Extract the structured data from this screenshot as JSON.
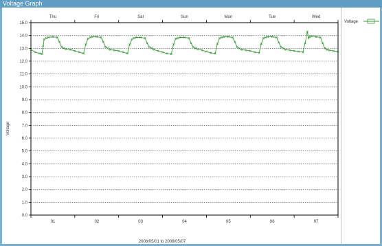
{
  "window": {
    "title": "Voltage Graph"
  },
  "colors": {
    "series": "#3a9a3a",
    "grid": "#444444",
    "axis": "#000000",
    "background": "#ffffff",
    "frame": "#7ab0cf"
  },
  "chart_data": {
    "type": "line",
    "title": "",
    "xlabel": "2008/05/01 to 2008/05/07",
    "ylabel": "Voltage",
    "ylim": [
      0,
      15
    ],
    "yticks": [
      "0.0",
      "1.0",
      "2.0",
      "3.0",
      "4.0",
      "5.0",
      "6.0",
      "7.0",
      "8.0",
      "9.0",
      "10.0",
      "11.0",
      "12.0",
      "13.0",
      "14.0",
      "15.0"
    ],
    "xlim": [
      0,
      7
    ],
    "xticks": [
      {
        "x": 0.5,
        "label": "01"
      },
      {
        "x": 1.5,
        "label": "02"
      },
      {
        "x": 2.5,
        "label": "03"
      },
      {
        "x": 3.5,
        "label": "04"
      },
      {
        "x": 4.5,
        "label": "05"
      },
      {
        "x": 5.5,
        "label": "06"
      },
      {
        "x": 6.5,
        "label": "07"
      }
    ],
    "top_labels": [
      {
        "x": 0.5,
        "label": "Thu"
      },
      {
        "x": 1.5,
        "label": "Fri"
      },
      {
        "x": 2.5,
        "label": "Sat"
      },
      {
        "x": 3.5,
        "label": "Sun"
      },
      {
        "x": 4.5,
        "label": "Mon"
      },
      {
        "x": 5.5,
        "label": "Tue"
      },
      {
        "x": 6.5,
        "label": "Wed"
      }
    ],
    "grid": true,
    "legend_position": "right",
    "series": [
      {
        "name": "Voltage",
        "x": [
          0.0,
          0.1,
          0.2,
          0.25,
          0.28,
          0.3,
          0.35,
          0.4,
          0.5,
          0.6,
          0.65,
          0.7,
          0.75,
          0.8,
          0.9,
          1.0,
          1.1,
          1.2,
          1.25,
          1.3,
          1.35,
          1.4,
          1.5,
          1.6,
          1.65,
          1.7,
          1.75,
          1.8,
          1.9,
          2.0,
          2.1,
          2.2,
          2.25,
          2.3,
          2.35,
          2.4,
          2.5,
          2.6,
          2.65,
          2.7,
          2.75,
          2.8,
          2.9,
          3.0,
          3.1,
          3.2,
          3.25,
          3.3,
          3.35,
          3.4,
          3.5,
          3.6,
          3.65,
          3.7,
          3.75,
          3.8,
          3.9,
          4.0,
          4.1,
          4.2,
          4.25,
          4.3,
          4.35,
          4.4,
          4.5,
          4.6,
          4.65,
          4.7,
          4.75,
          4.8,
          4.9,
          5.0,
          5.1,
          5.2,
          5.25,
          5.3,
          5.35,
          5.4,
          5.5,
          5.6,
          5.65,
          5.7,
          5.75,
          5.8,
          5.9,
          6.0,
          6.1,
          6.2,
          6.25,
          6.3,
          6.33,
          6.35,
          6.4,
          6.5,
          6.6,
          6.65,
          6.7,
          6.75,
          6.8,
          6.9,
          7.0
        ],
        "values": [
          12.9,
          12.7,
          12.6,
          12.55,
          13.2,
          13.7,
          13.8,
          13.85,
          13.9,
          13.85,
          13.5,
          13.1,
          13.0,
          12.95,
          12.9,
          12.8,
          12.7,
          12.6,
          13.3,
          13.75,
          13.85,
          13.9,
          13.9,
          13.85,
          13.5,
          13.1,
          13.0,
          12.9,
          12.85,
          12.8,
          12.7,
          12.6,
          13.3,
          13.7,
          13.8,
          13.85,
          13.85,
          13.8,
          13.4,
          13.1,
          13.0,
          12.9,
          12.8,
          12.7,
          12.6,
          12.55,
          13.3,
          13.75,
          13.8,
          13.85,
          13.85,
          13.8,
          13.4,
          13.1,
          13.0,
          12.95,
          12.85,
          12.75,
          12.65,
          12.6,
          13.35,
          13.8,
          13.85,
          13.9,
          13.9,
          13.85,
          13.5,
          13.1,
          13.0,
          12.9,
          12.85,
          12.8,
          12.7,
          12.65,
          13.35,
          13.8,
          13.85,
          13.9,
          13.9,
          13.85,
          13.45,
          13.1,
          13.0,
          12.9,
          12.85,
          12.8,
          12.75,
          12.7,
          13.4,
          14.3,
          13.8,
          13.9,
          13.95,
          13.9,
          13.85,
          13.4,
          13.0,
          12.9,
          12.85,
          12.8,
          12.75
        ]
      }
    ]
  }
}
